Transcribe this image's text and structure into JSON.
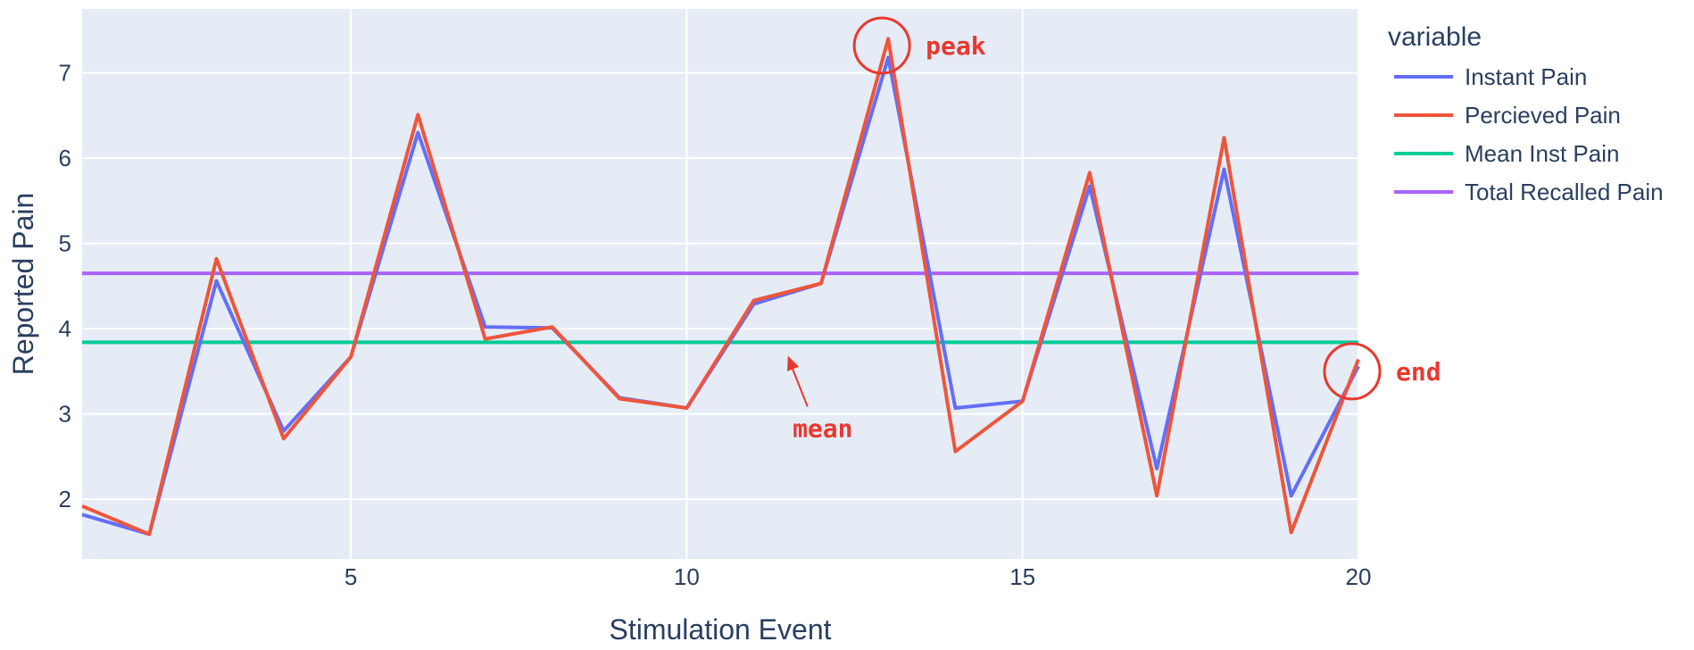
{
  "chart_data": {
    "type": "line",
    "xlabel": "Stimulation Event",
    "ylabel": "Reported Pain",
    "xlim": [
      1,
      20
    ],
    "ylim": [
      1.3,
      7.75
    ],
    "x_ticks": [
      5,
      10,
      15,
      20
    ],
    "y_ticks": [
      2,
      3,
      4,
      5,
      6,
      7
    ],
    "grid": true,
    "legend": {
      "title": "variable",
      "position": "right"
    },
    "x": [
      1,
      2,
      3,
      4,
      5,
      6,
      7,
      8,
      9,
      10,
      11,
      12,
      13,
      14,
      15,
      16,
      17,
      18,
      19,
      20
    ],
    "series": [
      {
        "name": "Instant Pain",
        "color": "#636efa",
        "values": [
          1.82,
          1.59,
          4.56,
          2.8,
          3.67,
          6.3,
          4.02,
          4.01,
          3.19,
          3.07,
          4.29,
          4.53,
          7.18,
          3.07,
          3.15,
          5.67,
          2.36,
          5.87,
          2.04,
          3.56
        ]
      },
      {
        "name": "Percieved Pain",
        "color": "#ef553b",
        "values": [
          1.92,
          1.59,
          4.82,
          2.71,
          3.67,
          6.51,
          3.88,
          4.02,
          3.18,
          3.07,
          4.33,
          4.53,
          7.4,
          2.56,
          3.15,
          5.83,
          2.04,
          6.24,
          1.61,
          3.64
        ]
      },
      {
        "name": "Mean Inst Pain",
        "color": "#00cc96",
        "values": [
          3.84,
          3.84,
          3.84,
          3.84,
          3.84,
          3.84,
          3.84,
          3.84,
          3.84,
          3.84,
          3.84,
          3.84,
          3.84,
          3.84,
          3.84,
          3.84,
          3.84,
          3.84,
          3.84,
          3.84
        ]
      },
      {
        "name": "Total Recalled Pain",
        "color": "#ab63fa",
        "values": [
          4.65,
          4.65,
          4.65,
          4.65,
          4.65,
          4.65,
          4.65,
          4.65,
          4.65,
          4.65,
          4.65,
          4.65,
          4.65,
          4.65,
          4.65,
          4.65,
          4.65,
          4.65,
          4.65,
          4.65
        ]
      }
    ],
    "annotations": [
      {
        "text": "peak",
        "x": 13,
        "y": 7.32,
        "marker": "circle",
        "color": "#e8382f"
      },
      {
        "text": "end",
        "x": 20,
        "y": 3.5,
        "marker": "circle",
        "color": "#e8382f"
      },
      {
        "text": "mean",
        "x": 11.6,
        "y": 3.84,
        "marker": "arrow",
        "color": "#e8382f"
      }
    ]
  }
}
